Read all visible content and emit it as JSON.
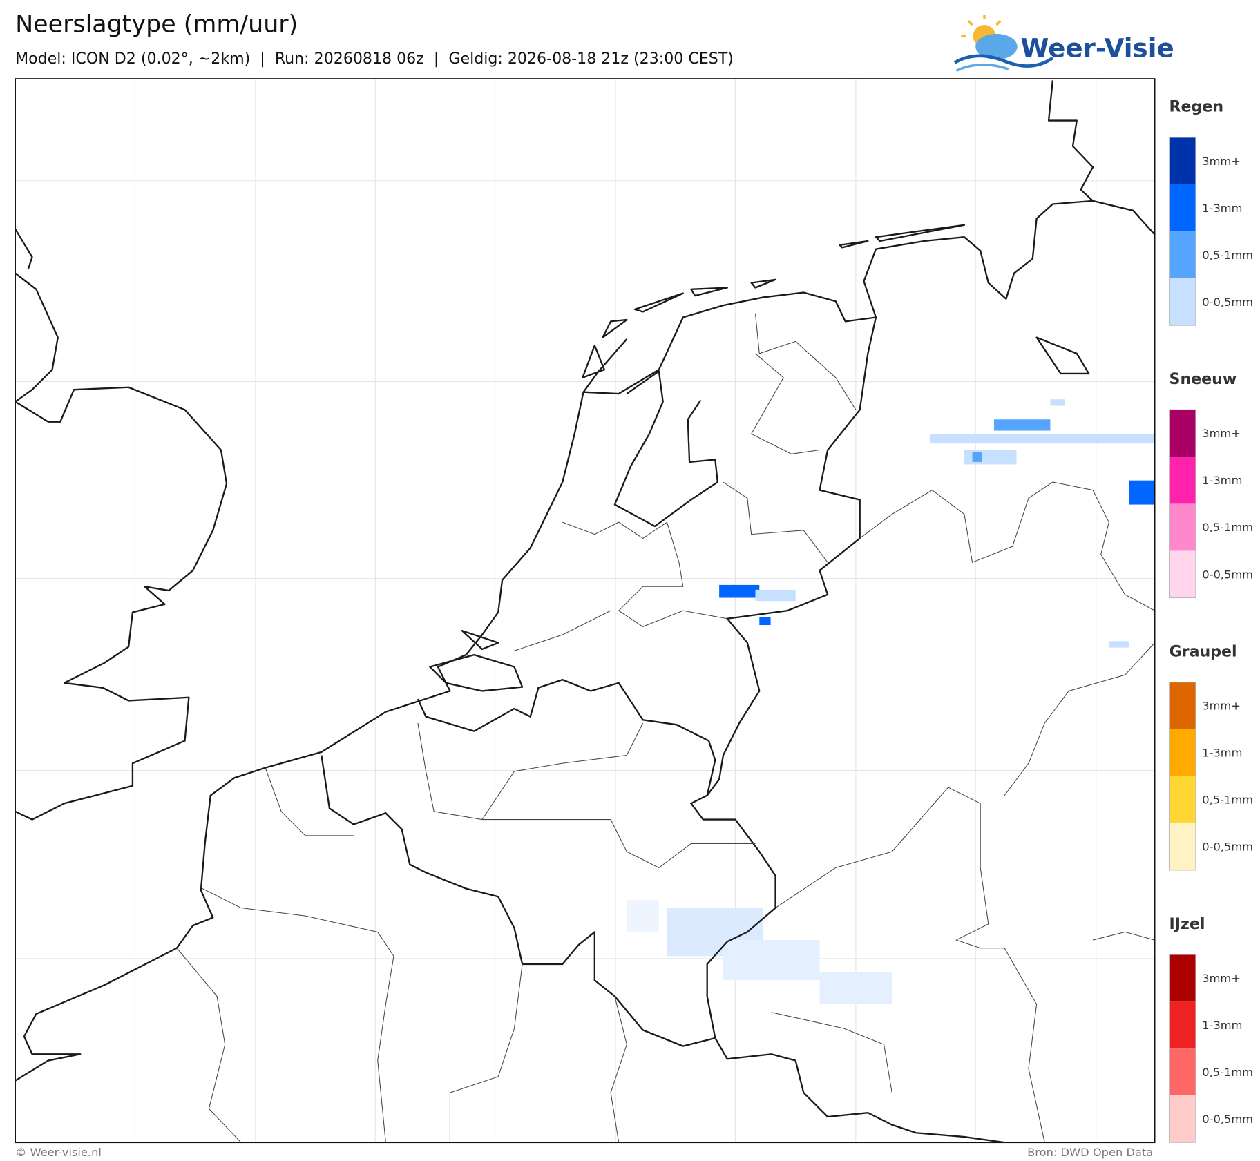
{
  "header": {
    "title": "Neerslagtype (mm/uur)",
    "subtitle": "Model: ICON D2 (0.02°, ~2km)  |  Run: 20260818 06z  |  Geldig: 2026-08-18 21z (23:00 CEST)"
  },
  "logo": {
    "text": "Weer-Visie"
  },
  "legend": {
    "groups": [
      {
        "title": "Regen",
        "items": [
          {
            "label": "3mm+",
            "color": "#0033aa"
          },
          {
            "label": "1-3mm",
            "color": "#0066ff"
          },
          {
            "label": "0,5-1mm",
            "color": "#55a5ff"
          },
          {
            "label": "0-0,5mm",
            "color": "#c8e0ff"
          }
        ]
      },
      {
        "title": "Sneeuw",
        "items": [
          {
            "label": "3mm+",
            "color": "#aa0066"
          },
          {
            "label": "1-3mm",
            "color": "#ff22aa"
          },
          {
            "label": "0,5-1mm",
            "color": "#ff88cc"
          },
          {
            "label": "0-0,5mm",
            "color": "#ffd6ec"
          }
        ]
      },
      {
        "title": "Graupel",
        "items": [
          {
            "label": "3mm+",
            "color": "#dd6600"
          },
          {
            "label": "1-3mm",
            "color": "#ffaa00"
          },
          {
            "label": "0,5-1mm",
            "color": "#ffd633"
          },
          {
            "label": "0-0,5mm",
            "color": "#fff2c4"
          }
        ]
      },
      {
        "title": "IJzel",
        "items": [
          {
            "label": "3mm+",
            "color": "#aa0000"
          },
          {
            "label": "1-3mm",
            "color": "#ee2222"
          },
          {
            "label": "0,5-1mm",
            "color": "#ff6666"
          },
          {
            "label": "0-0,5mm",
            "color": "#ffcccc"
          }
        ]
      }
    ]
  },
  "footer": {
    "left": "© Weer-visie.nl",
    "right": "Bron: DWD Open Data"
  }
}
